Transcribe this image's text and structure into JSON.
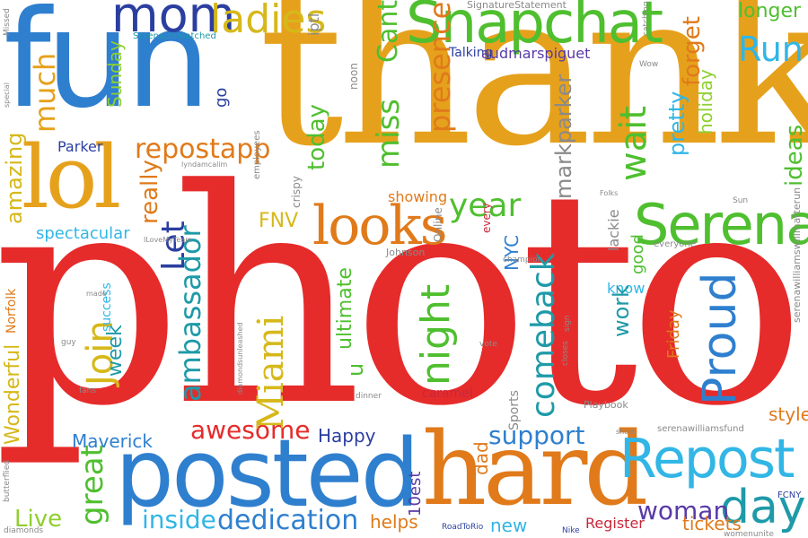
{
  "words": {
    "photo": "photo",
    "thank": "thank",
    "fun": "fun",
    "posted": "posted",
    "hard": "hard",
    "lol": "lol",
    "looks": "looks",
    "snapchat": "Snapchat",
    "serena": "Serena",
    "repost": "Repost",
    "mom": "mom",
    "ladies": "ladies",
    "miami": "Miami",
    "awesome": "awesome",
    "dedication": "dedication",
    "inside": "inside",
    "maverick": "Maverick",
    "great": "great",
    "join": "Join",
    "proud": "Proud",
    "day": "day",
    "woman": "woman",
    "support": "support",
    "comeback": "comeback",
    "night": "night",
    "year": "year",
    "repostapp": "repostapp",
    "amazing": "amazing",
    "spectacular": "spectacular",
    "run": "Run",
    "longer": "longer",
    "forget": "forget",
    "much": "much",
    "sunday": "Sunday",
    "today": "today",
    "miss": "miss",
    "wait": "wait",
    "presence": "presence",
    "cant": "Cant",
    "audmarspiguet": "audmarspiguet",
    "markparker": "markparker",
    "ideas": "ideas",
    "pretty": "pretty",
    "holiday": "holiday",
    "really": "really",
    "let": "Let",
    "fnv": "FNV",
    "ambassador": "ambassador",
    "ultimate": "ultimate",
    "wonderful": "Wonderful",
    "norfolk": "Norfolk",
    "live": "Live",
    "week": "week",
    "success": "success",
    "happy": "Happy",
    "helps": "helps",
    "register": "Register",
    "tickets": "tickets",
    "new": "new",
    "dad": "dad",
    "10est": "10est",
    "caramel": "caramel",
    "showing": "showing",
    "nyc": "NYC",
    "every": "every",
    "good": "good",
    "lackie": "lackie",
    "know": "know",
    "work": "work",
    "friday": "Friday",
    "style": "style",
    "u": "u",
    "go": "go",
    "talking": "Talking",
    "parker": "Parker",
    "iptl": "iptl",
    "noon": "noon",
    "snap_statement": "SignatureStatement",
    "serena_unmatched": "SerenaUnmatched",
    "serenawilliamsfund": "serenawilliamsfund",
    "williams_long": "serenawilliamswillmatterun",
    "playbook": "Playbook",
    "sports": "Sports",
    "johnson": "Johnson",
    "online": "Online",
    "vote": "vote",
    "employees": "employees",
    "crispy": "crispy",
    "everyone": "everyone",
    "champion": "champion",
    "diamonds": "diamonds",
    "butterflied": "butterflied",
    "fcny": "FCNY",
    "womenunite": "womenunite",
    "road_to_rio": "RoadToRio",
    "nike": "Nike",
    "missed": "Missed",
    "sun": "Sun",
    "folks": "Folks",
    "wow": "Wow",
    "catching": "catching",
    "closes": "closes",
    "guy": "guy",
    "fans": "fans",
    "made": "made",
    "dinner": "dinner",
    "sign": "sign",
    "diamondsunleashed": "diamondsunleashed",
    "ilovemyteam": "ILoveMyTeam",
    "shots": "shots",
    "special": "special",
    "lyndamcalim": "lyndamcalim"
  }
}
